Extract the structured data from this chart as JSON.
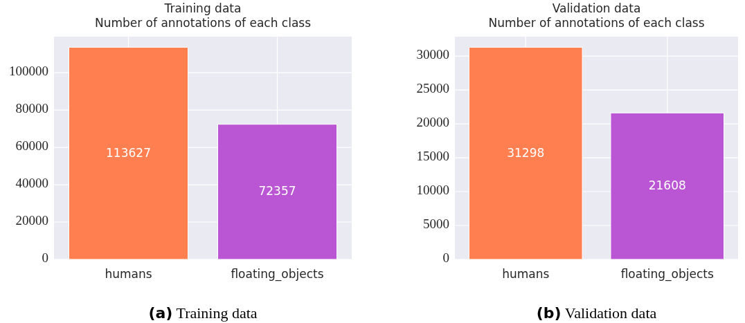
{
  "chart_data": [
    {
      "type": "bar",
      "title": "Training data\nNumber of annotations of each class",
      "categories": [
        "humans",
        "floating_objects"
      ],
      "values": [
        113627,
        72357
      ],
      "colors": [
        "#ff7f50",
        "#ba55d3"
      ],
      "ylim": [
        0,
        119308
      ],
      "yticks": [
        0,
        20000,
        40000,
        60000,
        80000,
        100000
      ],
      "grid": true,
      "data_labels": true,
      "annotations": [
        "(a) Training data"
      ]
    },
    {
      "type": "bar",
      "title": "Validation data\nNumber of annotations of each class",
      "categories": [
        "humans",
        "floating_objects"
      ],
      "values": [
        31298,
        21608
      ],
      "colors": [
        "#ff7f50",
        "#ba55d3"
      ],
      "ylim": [
        0,
        32863
      ],
      "yticks": [
        0,
        5000,
        10000,
        15000,
        20000,
        25000,
        30000
      ],
      "grid": true,
      "data_labels": true,
      "annotations": [
        "(b) Validation data"
      ]
    }
  ]
}
